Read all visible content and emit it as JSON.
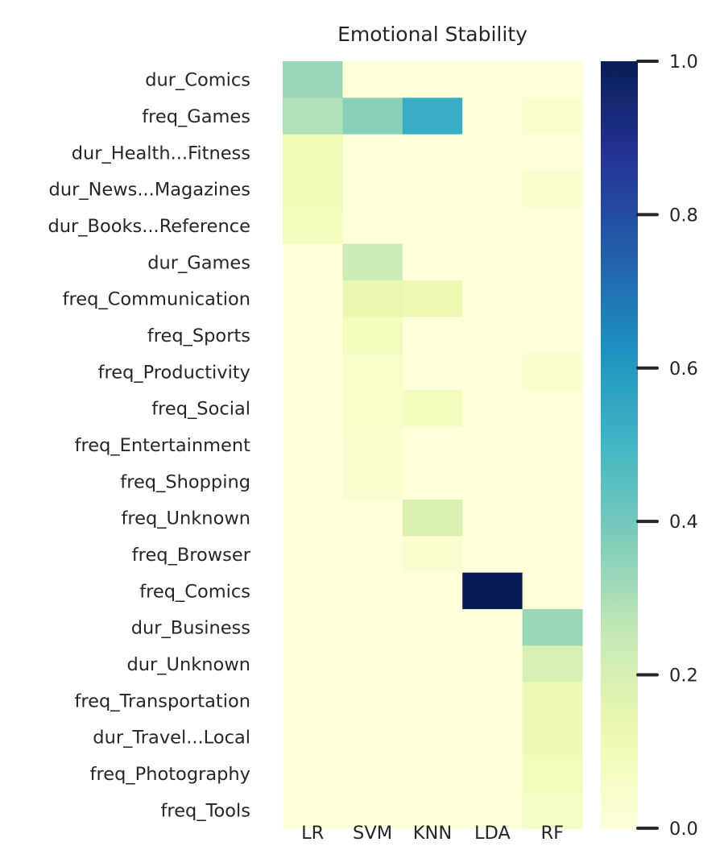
{
  "chart_data": {
    "type": "heatmap",
    "title": "Emotional Stability",
    "xlabel": "",
    "ylabel": "",
    "x_categories": [
      "LR",
      "SVM",
      "KNN",
      "LDA",
      "RF"
    ],
    "y_categories": [
      "dur_Comics",
      "freq_Games",
      "dur_Health...Fitness",
      "dur_News...Magazines",
      "dur_Books...Reference",
      "dur_Games",
      "freq_Communication",
      "freq_Sports",
      "freq_Productivity",
      "freq_Social",
      "freq_Entertainment",
      "freq_Shopping",
      "freq_Unknown",
      "freq_Browser",
      "freq_Comics",
      "dur_Business",
      "dur_Unknown",
      "freq_Transportation",
      "dur_Travel...Local",
      "freq_Photography",
      "freq_Tools"
    ],
    "values": [
      [
        0.33,
        0.0,
        0.0,
        0.0,
        0.0
      ],
      [
        0.29,
        0.36,
        0.53,
        0.0,
        0.03
      ],
      [
        0.1,
        0.0,
        0.0,
        0.0,
        0.0
      ],
      [
        0.1,
        0.0,
        0.0,
        0.0,
        0.03
      ],
      [
        0.08,
        0.0,
        0.0,
        0.0,
        0.0
      ],
      [
        0.0,
        0.23,
        0.0,
        0.0,
        0.0
      ],
      [
        0.0,
        0.13,
        0.12,
        0.0,
        0.0
      ],
      [
        0.0,
        0.08,
        0.0,
        0.0,
        0.0
      ],
      [
        0.0,
        0.05,
        0.0,
        0.0,
        0.03
      ],
      [
        0.0,
        0.05,
        0.08,
        0.0,
        0.0
      ],
      [
        0.0,
        0.03,
        0.0,
        0.0,
        0.0
      ],
      [
        0.0,
        0.03,
        0.0,
        0.0,
        0.0
      ],
      [
        0.0,
        0.0,
        0.19,
        0.0,
        0.0
      ],
      [
        0.0,
        0.0,
        0.03,
        0.0,
        0.0
      ],
      [
        0.0,
        0.0,
        0.0,
        1.0,
        0.0
      ],
      [
        0.0,
        0.0,
        0.0,
        0.0,
        0.33
      ],
      [
        0.0,
        0.0,
        0.0,
        0.0,
        0.2
      ],
      [
        0.0,
        0.0,
        0.0,
        0.0,
        0.11
      ],
      [
        0.0,
        0.0,
        0.0,
        0.0,
        0.11
      ],
      [
        0.0,
        0.0,
        0.0,
        0.0,
        0.09
      ],
      [
        0.0,
        0.0,
        0.0,
        0.0,
        0.06
      ]
    ],
    "colorbar": {
      "range": [
        0.0,
        1.0
      ],
      "ticks": [
        0.0,
        0.2,
        0.4,
        0.6,
        0.8,
        1.0
      ],
      "tick_labels": [
        "0.0",
        "0.2",
        "0.4",
        "0.6",
        "0.8",
        "1.0"
      ],
      "colormap": "YlGnBu",
      "colormap_stops": [
        "#ffffd9",
        "#edf8b1",
        "#c7e9b4",
        "#7fcdbb",
        "#41b6c4",
        "#1d91c0",
        "#225ea8",
        "#253494",
        "#081d58"
      ]
    },
    "grid": false,
    "legend": "none"
  }
}
